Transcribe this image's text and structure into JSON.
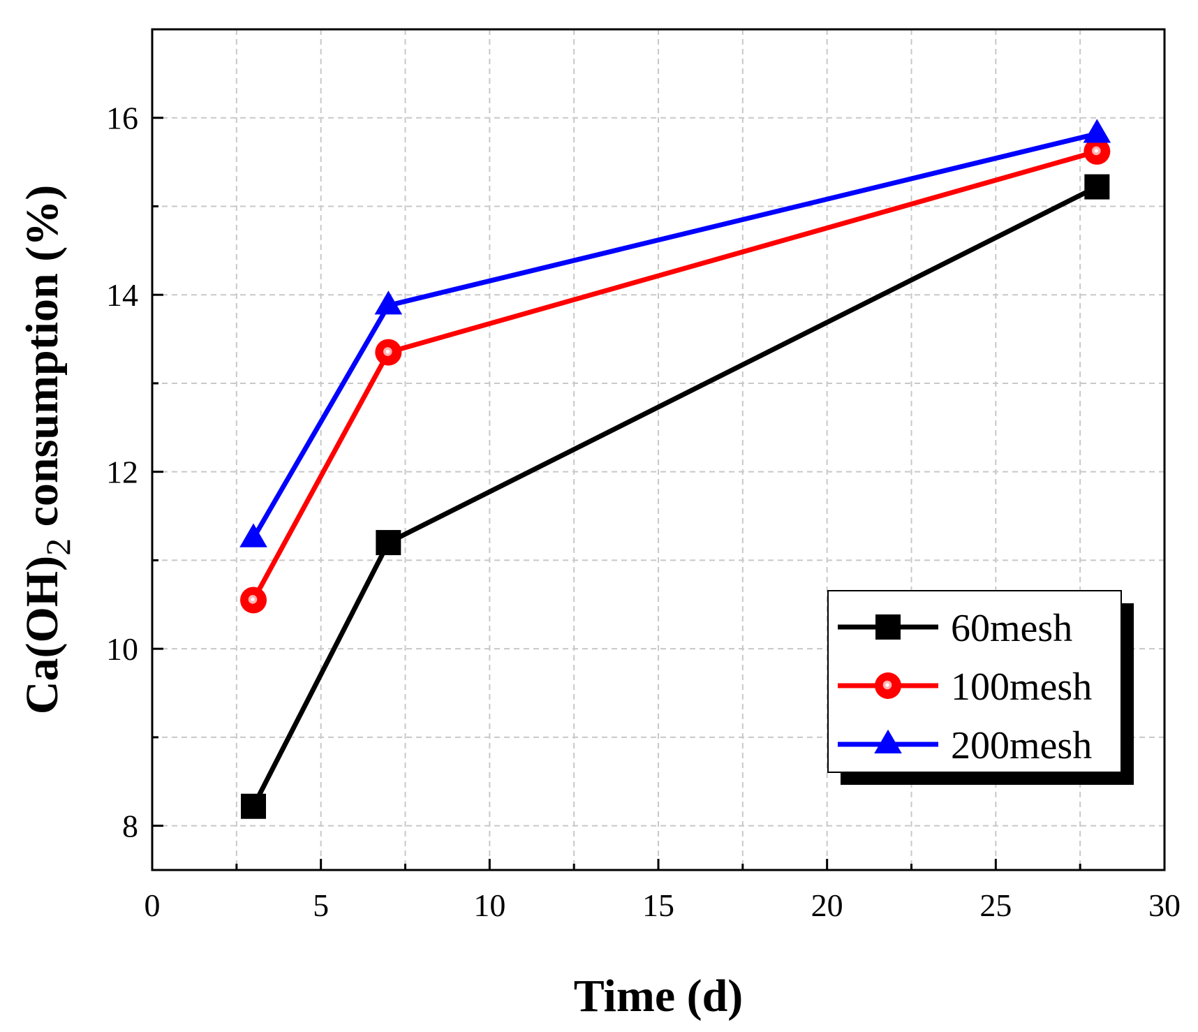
{
  "chart_data": {
    "type": "line",
    "title": "",
    "xlabel": "Time (d)",
    "ylabel": {
      "base": "Ca(OH)",
      "subscript": "2",
      "rest": " consumption (%)"
    },
    "xlim": [
      0,
      30
    ],
    "ylim": [
      7.5,
      17
    ],
    "xticks": [
      0,
      5,
      10,
      15,
      20,
      25,
      30
    ],
    "xtick_labels": [
      "0",
      "5",
      "10",
      "15",
      "20",
      "25",
      "30"
    ],
    "yticks": [
      8,
      10,
      12,
      14,
      16
    ],
    "ytick_labels": [
      "8",
      "10",
      "12",
      "14",
      "16"
    ],
    "x_minor_ticks": [
      2.5,
      7.5,
      12.5,
      17.5,
      22.5,
      27.5
    ],
    "y_minor_ticks": [
      9,
      11,
      13,
      15
    ],
    "grid": true,
    "legend_position": "bottom-right",
    "x": [
      3,
      7,
      28
    ],
    "series": [
      {
        "name": "60mesh",
        "values": [
          8.22,
          11.2,
          15.22
        ],
        "color": "#000000",
        "marker": "square"
      },
      {
        "name": "100mesh",
        "values": [
          10.55,
          13.35,
          15.62
        ],
        "color": "#ff0000",
        "marker": "circle"
      },
      {
        "name": "200mesh",
        "values": [
          11.25,
          13.88,
          15.82
        ],
        "color": "#0000ff",
        "marker": "triangle"
      }
    ]
  }
}
